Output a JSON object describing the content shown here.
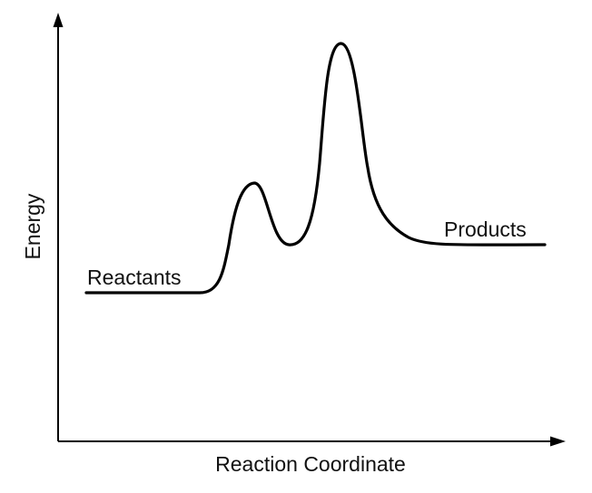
{
  "diagram": {
    "type": "energy-profile",
    "x_axis_label": "Reaction Coordinate",
    "y_axis_label": "Energy",
    "reactants_label": "Reactants",
    "products_label": "Products",
    "relative_energies": {
      "reactants": 0,
      "first_transition_state": 0.45,
      "intermediate": 0.23,
      "second_transition_state": 1.0,
      "products": 0.2
    },
    "stroke_color": "#000000",
    "text_color": "#111111"
  }
}
